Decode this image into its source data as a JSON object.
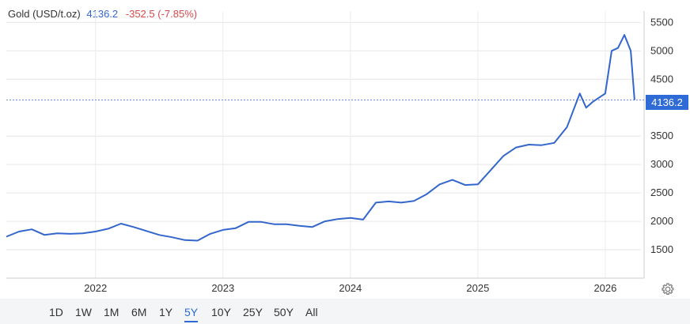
{
  "header": {
    "instrument": "Gold (USD/t.oz)",
    "price": "4136.2",
    "change": "-352.5 (-7.85%)"
  },
  "price_tag": "4136.2",
  "ranges": [
    "1D",
    "1W",
    "1M",
    "6M",
    "1Y",
    "5Y",
    "10Y",
    "25Y",
    "50Y",
    "All"
  ],
  "active_range": "5Y",
  "icons": {
    "settings": "gear-icon"
  },
  "colors": {
    "line": "#3366cc",
    "accent": "#2e6bd6",
    "negative": "#d44a4a"
  },
  "chart_data": {
    "type": "line",
    "series": [
      {
        "x": [
          2021.3,
          2021.4,
          2021.5,
          2021.6,
          2021.7,
          2021.8,
          2021.9,
          2022.0,
          2022.1,
          2022.2,
          2022.3,
          2022.4,
          2022.5,
          2022.6,
          2022.7,
          2022.8,
          2022.9,
          2023.0,
          2023.1,
          2023.2,
          2023.3,
          2023.4,
          2023.5,
          2023.6,
          2023.7,
          2023.8,
          2023.9,
          2024.0,
          2024.1,
          2024.2,
          2024.3,
          2024.4,
          2024.5,
          2024.6,
          2024.7,
          2024.8,
          2024.9,
          2025.0,
          2025.1,
          2025.2,
          2025.3,
          2025.4,
          2025.5,
          2025.6,
          2025.7,
          2025.8,
          2025.85,
          2025.9,
          2026.0,
          2026.05,
          2026.1,
          2026.15,
          2026.2,
          2026.23
        ],
        "values": [
          1730,
          1820,
          1860,
          1760,
          1790,
          1780,
          1790,
          1820,
          1870,
          1960,
          1900,
          1830,
          1760,
          1720,
          1670,
          1660,
          1780,
          1850,
          1880,
          1990,
          1990,
          1950,
          1950,
          1920,
          1900,
          2000,
          2040,
          2060,
          2030,
          2330,
          2350,
          2330,
          2360,
          2480,
          2650,
          2730,
          2640,
          2650,
          2900,
          3150,
          3300,
          3350,
          3340,
          3380,
          3660,
          4250,
          4000,
          4100,
          4250,
          5000,
          5050,
          5280,
          5000,
          4136.2
        ]
      }
    ],
    "x_ticks": [
      "2022",
      "2023",
      "2024",
      "2025",
      "2026"
    ],
    "x_tick_values": [
      2022,
      2023,
      2024,
      2025,
      2026
    ],
    "y_ticks": [
      1500,
      2000,
      2500,
      3000,
      3500,
      4500,
      5000,
      5500
    ],
    "xlim": [
      2021.3,
      2026.28
    ],
    "ylim": [
      1000,
      5700
    ],
    "last_value": 4136.2,
    "title": "",
    "xlabel": "",
    "ylabel": "",
    "grid": true
  }
}
